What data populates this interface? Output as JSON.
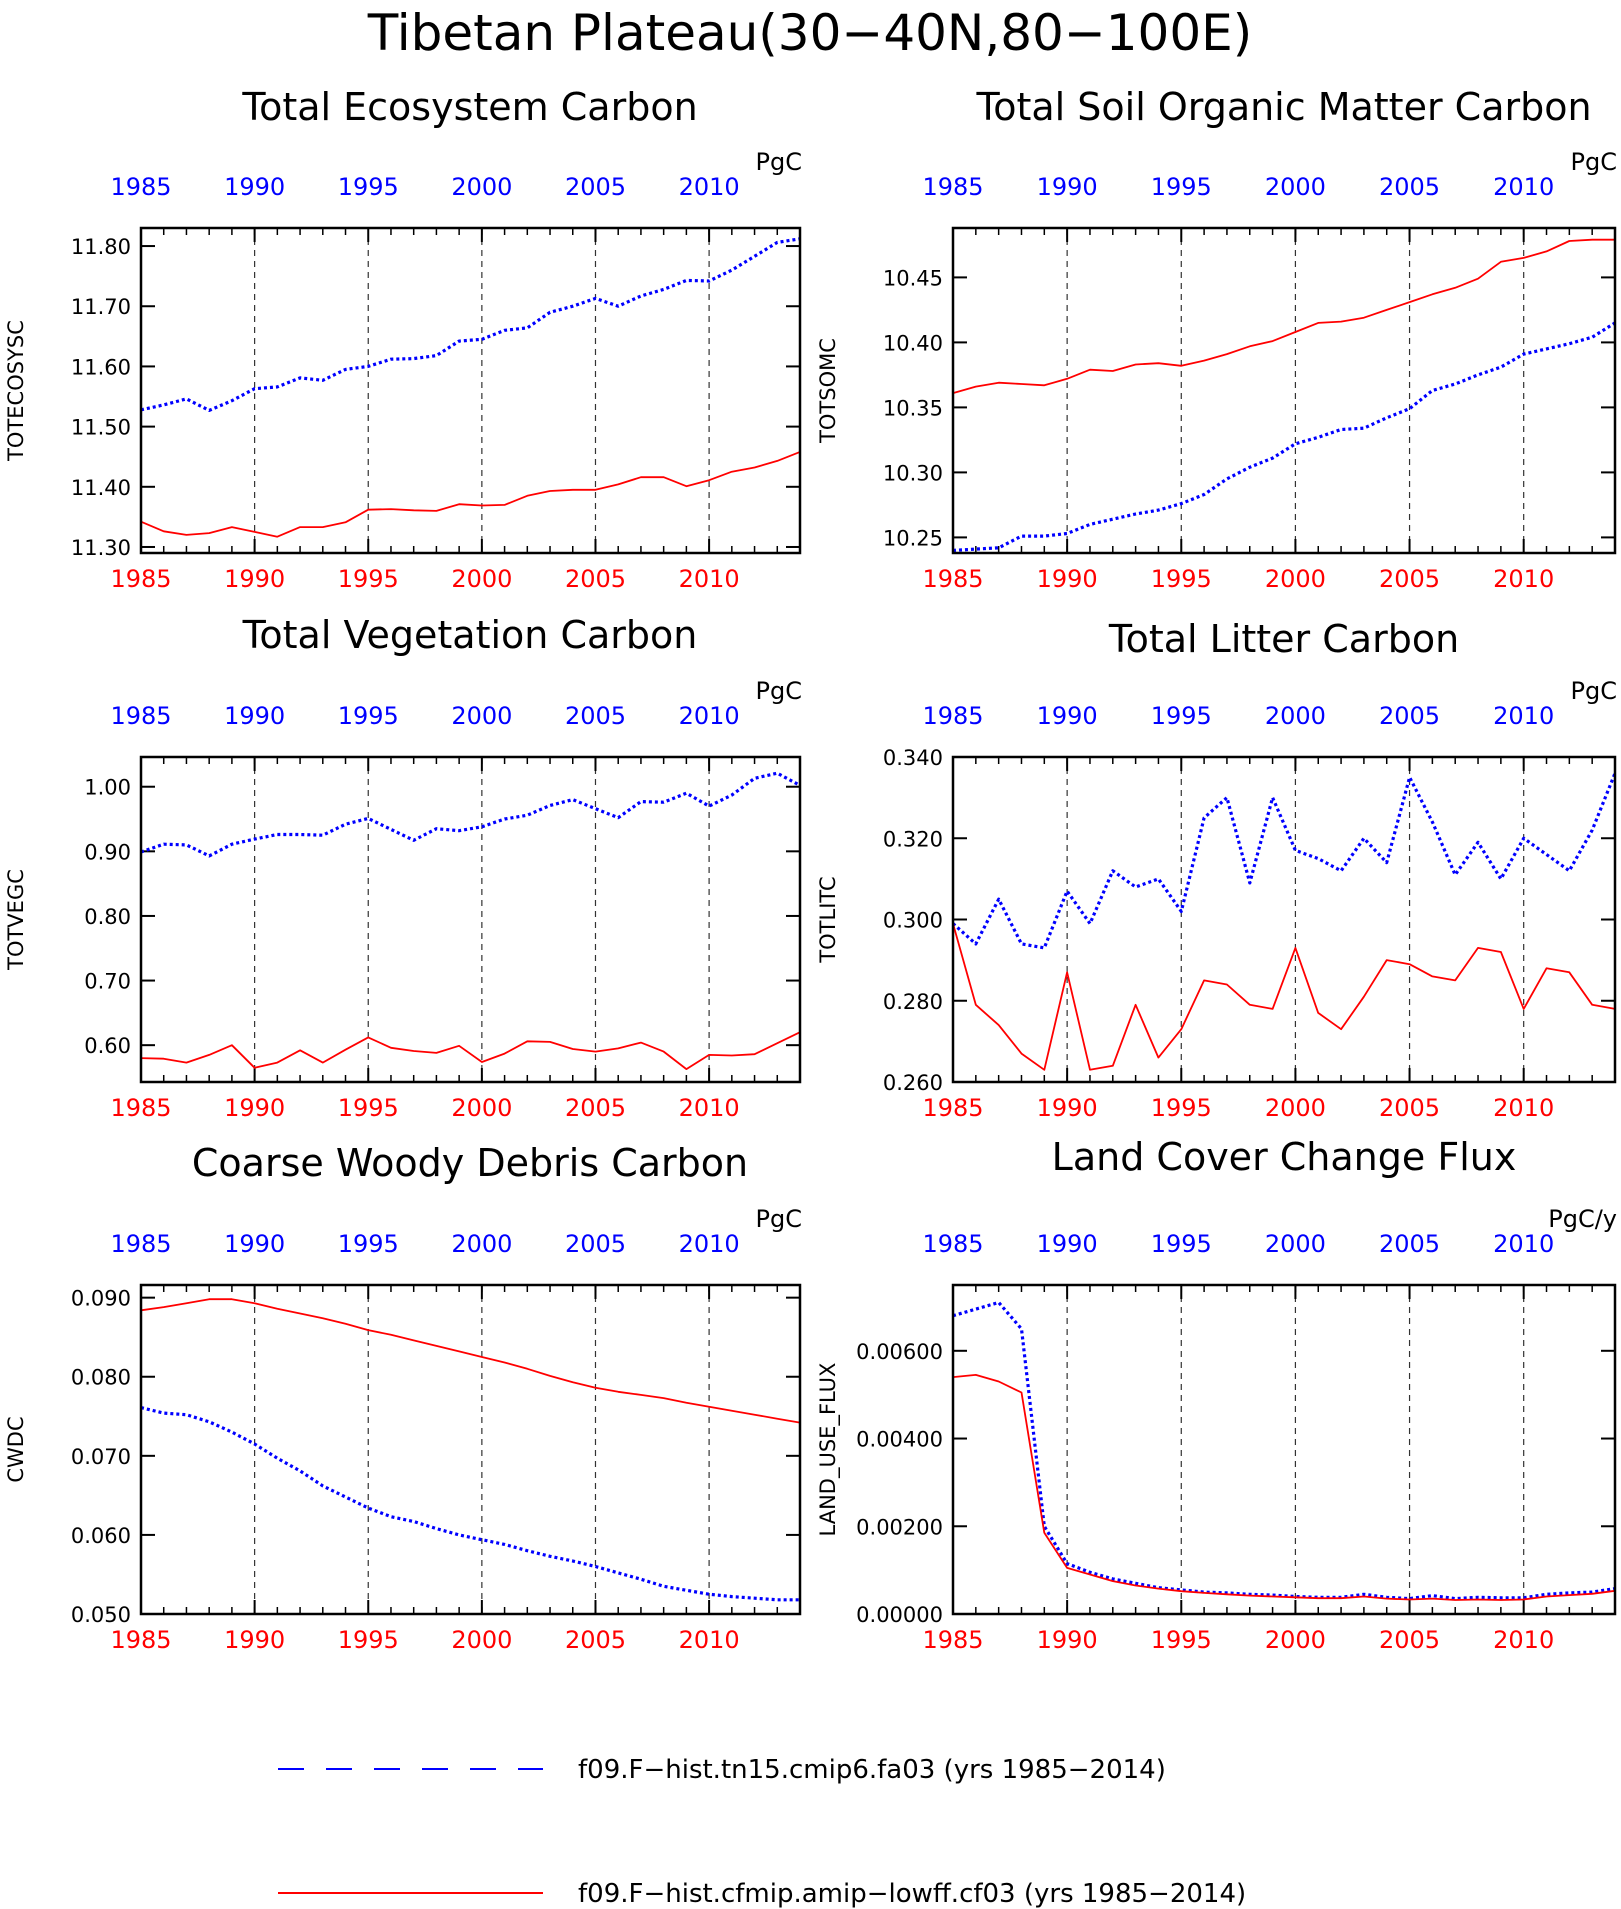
{
  "figure_title": "Tibetan Plateau(30−40N,80−100E)",
  "colors": {
    "series_blue": "#0000ff",
    "series_red": "#ff0000",
    "axis": "#000000",
    "grid": "#333333"
  },
  "legend": {
    "items": [
      {
        "label": "f09.F−hist.tn15.cmip6.fa03 (yrs 1985−2014)",
        "color": "#0000ff",
        "style": "dashed"
      },
      {
        "label": "f09.F−hist.cfmip.amip−lowff.cf03 (yrs 1985−2014)",
        "color": "#ff0000",
        "style": "solid"
      }
    ]
  },
  "chart_data": [
    {
      "type": "line",
      "title": "Total Ecosystem Carbon",
      "ylabel": "TOTECOSYSC",
      "units": "PgC",
      "xlim": [
        1985,
        2014
      ],
      "ylim": [
        11.29,
        11.83
      ],
      "yticks": [
        11.3,
        11.4,
        11.5,
        11.6,
        11.7,
        11.8
      ],
      "ytick_labels": [
        "11.30",
        "11.40",
        "11.50",
        "11.60",
        "11.70",
        "11.80"
      ],
      "xticks": [
        1985,
        1990,
        1995,
        2000,
        2005,
        2010
      ],
      "x": [
        1985,
        1986,
        1987,
        1988,
        1989,
        1990,
        1991,
        1992,
        1993,
        1994,
        1995,
        1996,
        1997,
        1998,
        1999,
        2000,
        2001,
        2002,
        2003,
        2004,
        2005,
        2006,
        2007,
        2008,
        2009,
        2010,
        2011,
        2012,
        2013,
        2014
      ],
      "series": [
        {
          "color": "blue",
          "dash": "dotted",
          "values": [
            11.528,
            11.536,
            11.546,
            11.527,
            11.543,
            11.563,
            11.566,
            11.581,
            11.577,
            11.595,
            11.6,
            11.612,
            11.613,
            11.618,
            11.642,
            11.645,
            11.66,
            11.664,
            11.69,
            11.7,
            11.713,
            11.7,
            11.717,
            11.728,
            11.743,
            11.742,
            11.76,
            11.783,
            11.806,
            11.812
          ]
        },
        {
          "color": "red",
          "dash": "solid",
          "values": [
            11.342,
            11.326,
            11.32,
            11.323,
            11.333,
            11.325,
            11.317,
            11.333,
            11.333,
            11.341,
            11.362,
            11.363,
            11.361,
            11.36,
            11.371,
            11.369,
            11.37,
            11.385,
            11.393,
            11.395,
            11.395,
            11.404,
            11.416,
            11.416,
            11.401,
            11.411,
            11.425,
            11.432,
            11.443,
            11.458
          ]
        }
      ]
    },
    {
      "type": "line",
      "title": "Total Soil Organic Matter Carbon",
      "ylabel": "TOTSOMC",
      "units": "PgC",
      "xlim": [
        1985,
        2014
      ],
      "ylim": [
        10.238,
        10.488
      ],
      "yticks": [
        10.25,
        10.3,
        10.35,
        10.4,
        10.45
      ],
      "ytick_labels": [
        "10.25",
        "10.30",
        "10.35",
        "10.40",
        "10.45"
      ],
      "xticks": [
        1985,
        1990,
        1995,
        2000,
        2005,
        2010
      ],
      "x": [
        1985,
        1986,
        1987,
        1988,
        1989,
        1990,
        1991,
        1992,
        1993,
        1994,
        1995,
        1996,
        1997,
        1998,
        1999,
        2000,
        2001,
        2002,
        2003,
        2004,
        2005,
        2006,
        2007,
        2008,
        2009,
        2010,
        2011,
        2012,
        2013,
        2014
      ],
      "series": [
        {
          "color": "blue",
          "dash": "dotted",
          "values": [
            10.24,
            10.241,
            10.242,
            10.251,
            10.251,
            10.253,
            10.26,
            10.264,
            10.268,
            10.271,
            10.276,
            10.283,
            10.295,
            10.304,
            10.311,
            10.322,
            10.327,
            10.333,
            10.334,
            10.342,
            10.349,
            10.363,
            10.368,
            10.375,
            10.381,
            10.391,
            10.395,
            10.399,
            10.404,
            10.415
          ]
        },
        {
          "color": "red",
          "dash": "solid",
          "values": [
            10.361,
            10.366,
            10.369,
            10.368,
            10.367,
            10.372,
            10.379,
            10.378,
            10.383,
            10.384,
            10.382,
            10.386,
            10.391,
            10.397,
            10.401,
            10.408,
            10.415,
            10.416,
            10.419,
            10.425,
            10.431,
            10.437,
            10.442,
            10.449,
            10.462,
            10.465,
            10.47,
            10.478,
            10.479,
            10.479
          ]
        }
      ]
    },
    {
      "type": "line",
      "title": "Total Vegetation Carbon",
      "ylabel": "TOTVEGC",
      "units": "PgC",
      "xlim": [
        1985,
        2014
      ],
      "ylim": [
        0.543,
        1.046
      ],
      "yticks": [
        0.6,
        0.7,
        0.8,
        0.9,
        1.0
      ],
      "ytick_labels": [
        "0.60",
        "0.70",
        "0.80",
        "0.90",
        "1.00"
      ],
      "xticks": [
        1985,
        1990,
        1995,
        2000,
        2005,
        2010
      ],
      "x": [
        1985,
        1986,
        1987,
        1988,
        1989,
        1990,
        1991,
        1992,
        1993,
        1994,
        1995,
        1996,
        1997,
        1998,
        1999,
        2000,
        2001,
        2002,
        2003,
        2004,
        2005,
        2006,
        2007,
        2008,
        2009,
        2010,
        2011,
        2012,
        2013,
        2014
      ],
      "series": [
        {
          "color": "blue",
          "dash": "dotted",
          "values": [
            0.899,
            0.911,
            0.91,
            0.893,
            0.911,
            0.919,
            0.926,
            0.926,
            0.925,
            0.942,
            0.951,
            0.934,
            0.917,
            0.935,
            0.932,
            0.938,
            0.95,
            0.956,
            0.971,
            0.98,
            0.966,
            0.952,
            0.977,
            0.976,
            0.99,
            0.97,
            0.987,
            1.013,
            1.021,
            1.002
          ]
        },
        {
          "color": "red",
          "dash": "solid",
          "values": [
            0.58,
            0.579,
            0.573,
            0.585,
            0.6,
            0.565,
            0.573,
            0.592,
            0.573,
            0.593,
            0.612,
            0.596,
            0.591,
            0.588,
            0.599,
            0.574,
            0.587,
            0.606,
            0.605,
            0.594,
            0.59,
            0.595,
            0.604,
            0.59,
            0.563,
            0.585,
            0.584,
            0.586,
            0.603,
            0.62
          ]
        }
      ]
    },
    {
      "type": "line",
      "title": "Total Litter Carbon",
      "ylabel": "TOTLITC",
      "units": "PgC",
      "xlim": [
        1985,
        2014
      ],
      "ylim": [
        0.26,
        0.34
      ],
      "yticks": [
        0.26,
        0.28,
        0.3,
        0.32,
        0.34
      ],
      "ytick_labels": [
        "0.260",
        "0.280",
        "0.300",
        "0.320",
        "0.340"
      ],
      "xticks": [
        1985,
        1990,
        1995,
        2000,
        2005,
        2010
      ],
      "x": [
        1985,
        1986,
        1987,
        1988,
        1989,
        1990,
        1991,
        1992,
        1993,
        1994,
        1995,
        1996,
        1997,
        1998,
        1999,
        2000,
        2001,
        2002,
        2003,
        2004,
        2005,
        2006,
        2007,
        2008,
        2009,
        2010,
        2011,
        2012,
        2013,
        2014
      ],
      "series": [
        {
          "color": "blue",
          "dash": "dotted",
          "values": [
            0.299,
            0.294,
            0.305,
            0.294,
            0.293,
            0.307,
            0.299,
            0.312,
            0.308,
            0.31,
            0.302,
            0.325,
            0.33,
            0.309,
            0.33,
            0.317,
            0.315,
            0.312,
            0.32,
            0.314,
            0.335,
            0.324,
            0.311,
            0.319,
            0.31,
            0.32,
            0.316,
            0.312,
            0.322,
            0.336
          ]
        },
        {
          "color": "red",
          "dash": "solid",
          "values": [
            0.299,
            0.279,
            0.274,
            0.267,
            0.263,
            0.287,
            0.263,
            0.264,
            0.279,
            0.266,
            0.273,
            0.285,
            0.284,
            0.279,
            0.278,
            0.293,
            0.277,
            0.273,
            0.281,
            0.29,
            0.289,
            0.286,
            0.285,
            0.293,
            0.292,
            0.278,
            0.288,
            0.287,
            0.279,
            0.278
          ]
        }
      ]
    },
    {
      "type": "line",
      "title": "Coarse Woody Debris Carbon",
      "ylabel": "CWDC",
      "units": "PgC",
      "xlim": [
        1985,
        2014
      ],
      "ylim": [
        0.05,
        0.0916
      ],
      "yticks": [
        0.05,
        0.06,
        0.07,
        0.08,
        0.09
      ],
      "ytick_labels": [
        "0.050",
        "0.060",
        "0.070",
        "0.080",
        "0.090"
      ],
      "xticks": [
        1985,
        1990,
        1995,
        2000,
        2005,
        2010
      ],
      "x": [
        1985,
        1986,
        1987,
        1988,
        1989,
        1990,
        1991,
        1992,
        1993,
        1994,
        1995,
        1996,
        1997,
        1998,
        1999,
        2000,
        2001,
        2002,
        2003,
        2004,
        2005,
        2006,
        2007,
        2008,
        2009,
        2010,
        2011,
        2012,
        2013,
        2014
      ],
      "series": [
        {
          "color": "blue",
          "dash": "dotted",
          "values": [
            0.0761,
            0.0754,
            0.0752,
            0.0743,
            0.073,
            0.0715,
            0.0697,
            0.0681,
            0.0662,
            0.0648,
            0.0634,
            0.0623,
            0.0617,
            0.0608,
            0.06,
            0.0594,
            0.0588,
            0.058,
            0.0573,
            0.0567,
            0.056,
            0.0552,
            0.0544,
            0.0535,
            0.053,
            0.0525,
            0.0522,
            0.052,
            0.0518,
            0.0518
          ]
        },
        {
          "color": "red",
          "dash": "solid",
          "values": [
            0.0884,
            0.0888,
            0.0893,
            0.0898,
            0.0898,
            0.0893,
            0.0886,
            0.088,
            0.0874,
            0.0867,
            0.0859,
            0.0853,
            0.0846,
            0.0839,
            0.0832,
            0.0825,
            0.0818,
            0.081,
            0.0801,
            0.0793,
            0.0786,
            0.0781,
            0.0777,
            0.0773,
            0.0767,
            0.0762,
            0.0757,
            0.0752,
            0.0747,
            0.0742
          ]
        }
      ]
    },
    {
      "type": "line",
      "title": "Land Cover Change Flux",
      "ylabel": "LAND_USE_FLUX",
      "units": "PgC/y",
      "xlim": [
        1985,
        2014
      ],
      "ylim": [
        0,
        0.0075
      ],
      "yticks": [
        0,
        0.002,
        0.004,
        0.006
      ],
      "ytick_labels": [
        "0.00000",
        "0.00200",
        "0.00400",
        "0.00600"
      ],
      "xticks": [
        1985,
        1990,
        1995,
        2000,
        2005,
        2010
      ],
      "x": [
        1985,
        1986,
        1987,
        1988,
        1989,
        1990,
        1991,
        1992,
        1993,
        1994,
        1995,
        1996,
        1997,
        1998,
        1999,
        2000,
        2001,
        2002,
        2003,
        2004,
        2005,
        2006,
        2007,
        2008,
        2009,
        2010,
        2011,
        2012,
        2013,
        2014
      ],
      "series": [
        {
          "color": "blue",
          "dash": "dotted",
          "values": [
            0.0068,
            0.00695,
            0.0071,
            0.0065,
            0.002,
            0.00115,
            0.00095,
            0.0008,
            0.0007,
            0.0006,
            0.00055,
            0.0005,
            0.00048,
            0.00045,
            0.00043,
            0.0004,
            0.00038,
            0.00038,
            0.00045,
            0.00038,
            0.00035,
            0.00042,
            0.00035,
            0.00038,
            0.00037,
            0.00037,
            0.00045,
            0.00048,
            0.0005,
            0.00058
          ]
        },
        {
          "color": "red",
          "dash": "solid",
          "values": [
            0.0054,
            0.00545,
            0.0053,
            0.00505,
            0.00185,
            0.00105,
            0.0009,
            0.00075,
            0.00065,
            0.00058,
            0.00052,
            0.00048,
            0.00045,
            0.00042,
            0.0004,
            0.00038,
            0.00036,
            0.00036,
            0.0004,
            0.00035,
            0.00033,
            0.00035,
            0.00032,
            0.00033,
            0.00032,
            0.00033,
            0.0004,
            0.00043,
            0.00046,
            0.00053
          ]
        }
      ]
    }
  ]
}
